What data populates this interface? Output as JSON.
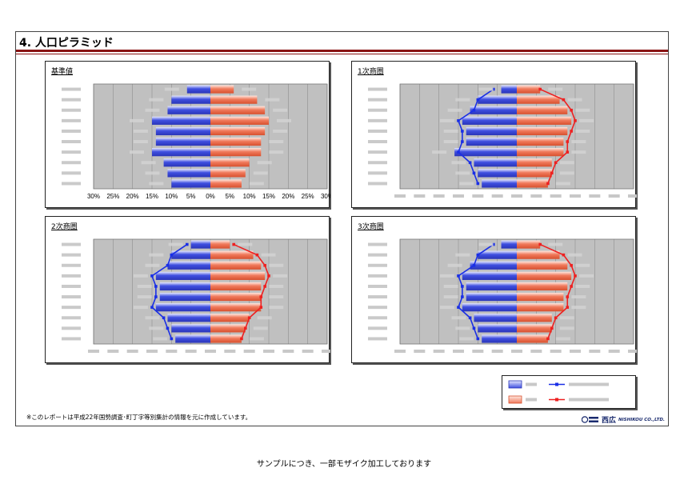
{
  "page": {
    "title": "4. 人口ピラミッド",
    "footnote": "※このレポートは平成22年国勢調査･町丁字等別集計の情報を元に作成しています。",
    "company": "西広",
    "company_en": "NISHIKOU CO.,LTD.",
    "sample_note": "サンプルにつき、一部モザイク加工しております"
  },
  "colors": {
    "male": "#3f4fe0",
    "female": "#f07a5c",
    "line_male": "#1a2fe6",
    "line_female": "#ee2020",
    "plot_bg": "#c0c0c0",
    "title_bar": "#8a1414"
  },
  "chart_data": [
    {
      "type": "bar",
      "title": "基準値",
      "xlim": [
        -30,
        30
      ],
      "x_tick_labels": [
        "30%",
        "25%",
        "20%",
        "15%",
        "10%",
        "5%",
        "0%",
        "5%",
        "10%",
        "15%",
        "20%",
        "25%",
        "30%"
      ],
      "series": [
        {
          "values_male": [
            6,
            10,
            11,
            15,
            14,
            14,
            15,
            12,
            11,
            10
          ]
        },
        {
          "values_female": [
            6,
            12,
            14,
            15,
            14,
            13,
            13,
            10,
            9,
            8
          ]
        }
      ]
    },
    {
      "type": "bar",
      "title": "1次商圏",
      "xlim": [
        -30,
        30
      ],
      "series": [
        {
          "values_male": [
            4,
            10,
            12,
            14,
            13,
            13,
            16,
            11,
            10,
            9
          ]
        },
        {
          "values_female": [
            6,
            11,
            13,
            14,
            13,
            12,
            12,
            9,
            9,
            8
          ]
        }
      ],
      "reference_male": [
        6,
        10,
        11,
        15,
        14,
        14,
        15,
        12,
        11,
        10
      ],
      "reference_female": [
        6,
        12,
        14,
        15,
        14,
        13,
        13,
        10,
        9,
        8
      ]
    },
    {
      "type": "bar",
      "title": "2次商圏",
      "xlim": [
        -30,
        30
      ],
      "series": [
        {
          "values_male": [
            5,
            10,
            11,
            14,
            13,
            13,
            14,
            11,
            10,
            9
          ]
        },
        {
          "values_female": [
            5,
            11,
            13,
            14,
            13,
            13,
            13,
            10,
            9,
            8
          ]
        }
      ],
      "reference_male": [
        6,
        10,
        11,
        15,
        14,
        14,
        15,
        12,
        11,
        10
      ],
      "reference_female": [
        6,
        12,
        14,
        15,
        14,
        13,
        13,
        10,
        9,
        8
      ]
    },
    {
      "type": "bar",
      "title": "3次商圏",
      "xlim": [
        -30,
        30
      ],
      "series": [
        {
          "values_male": [
            4,
            10,
            12,
            14,
            13,
            13,
            14,
            11,
            10,
            9
          ]
        },
        {
          "values_female": [
            6,
            11,
            13,
            14,
            13,
            12,
            12,
            9,
            9,
            8
          ]
        }
      ],
      "reference_male": [
        6,
        10,
        11,
        15,
        14,
        14,
        15,
        12,
        11,
        10
      ],
      "reference_female": [
        6,
        12,
        14,
        15,
        14,
        13,
        13,
        10,
        9,
        8
      ]
    }
  ]
}
